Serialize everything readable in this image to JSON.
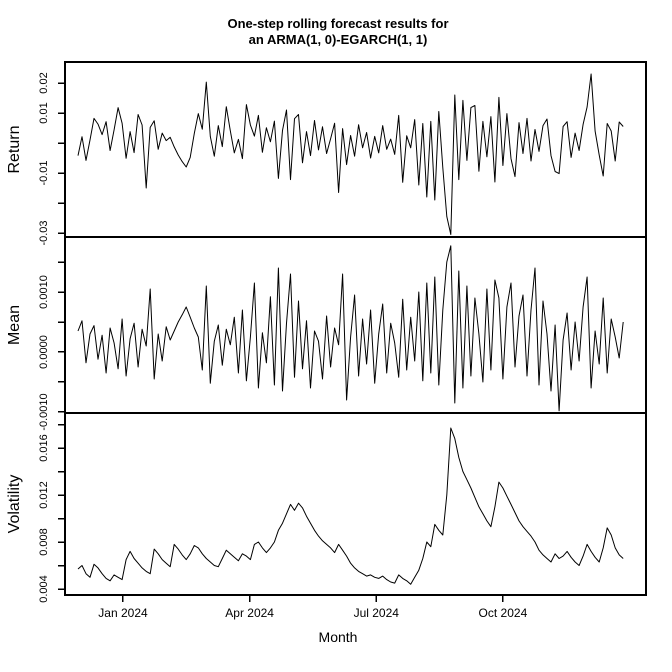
{
  "title": {
    "line1": "One-step rolling forecast results for",
    "line2": "an ARMA(1, 0)-EGARCH(1, 1)"
  },
  "colors": {
    "line": "#000000",
    "background": "#ffffff",
    "text": "#000000"
  },
  "chart_data": {
    "type": "line",
    "title_lines": [
      "One-step rolling forecast results for",
      "an ARMA(1, 0)-EGARCH(1, 1)"
    ],
    "xlabel": "Month",
    "x_axis_range": [
      -1.374,
      12.39
    ],
    "x_data_start": -1.066,
    "x_data_end": 11.85,
    "x_unit": "months relative to Jan 2024",
    "x_ticks": [
      {
        "pos": 0,
        "label": "Jan 2024"
      },
      {
        "pos": 3,
        "label": "Apr 2024"
      },
      {
        "pos": 6,
        "label": "Jul 2024"
      },
      {
        "pos": 9,
        "label": "Oct 2024"
      }
    ],
    "grid": false,
    "legend": "none",
    "panels": [
      {
        "name": "return",
        "ylabel": "Return",
        "ylim": [
          -0.03133,
          0.027
        ],
        "yticks": [
          {
            "v": 0.02,
            "label": "0.02"
          },
          {
            "v": 0.01,
            "label": "0.01"
          },
          {
            "v": 0.0
          },
          {
            "v": -0.01,
            "label": "-0.01"
          },
          {
            "v": -0.02
          },
          {
            "v": -0.03,
            "label": "-0.03"
          }
        ],
        "values": [
          -0.0042,
          0.0021,
          -0.0058,
          0.001,
          0.0082,
          0.0063,
          0.0028,
          0.0071,
          -0.0025,
          0.0044,
          0.0118,
          0.0066,
          -0.0051,
          0.0038,
          -0.0032,
          0.0095,
          0.006,
          -0.015,
          0.0052,
          0.0074,
          -0.0021,
          0.0033,
          0.0008,
          0.0019,
          -0.0013,
          -0.004,
          -0.0062,
          -0.008,
          -0.0048,
          0.0032,
          0.0098,
          0.0046,
          0.0203,
          0.0022,
          -0.0044,
          0.0058,
          -0.0012,
          0.0121,
          0.0041,
          -0.0033,
          0.0012,
          -0.0052,
          0.0128,
          0.006,
          0.0023,
          0.0092,
          -0.0031,
          0.0051,
          0.0004,
          0.0073,
          -0.0118,
          0.0042,
          0.011,
          -0.0122,
          0.0081,
          0.0095,
          -0.0066,
          0.0038,
          -0.0042,
          0.0075,
          -0.0023,
          0.0054,
          -0.0035,
          0.0014,
          0.0066,
          -0.0165,
          0.0048,
          -0.0072,
          0.0025,
          -0.0044,
          0.0061,
          -0.0016,
          0.0035,
          -0.005,
          0.0022,
          -0.0033,
          0.0058,
          -0.0021,
          0.0013,
          -0.0038,
          0.0092,
          -0.0131,
          0.0024,
          -0.0016,
          0.0078,
          -0.014,
          0.0065,
          -0.018,
          0.0072,
          -0.019,
          0.0105,
          -0.0082,
          -0.0245,
          -0.0305,
          0.016,
          -0.0122,
          0.0142,
          -0.0058,
          0.0118,
          0.0125,
          -0.0094,
          0.0072,
          -0.0046,
          0.0088,
          -0.013,
          0.0152,
          -0.0075,
          0.0098,
          -0.0052,
          -0.0112,
          0.0068,
          -0.0035,
          0.0082,
          -0.006,
          0.0045,
          -0.0028,
          0.0058,
          0.008,
          -0.0042,
          -0.0095,
          -0.0102,
          0.0055,
          0.0071,
          -0.0048,
          0.0033,
          -0.0025,
          0.0062,
          0.012,
          0.023,
          0.004,
          -0.004,
          -0.011,
          0.0065,
          0.004,
          -0.006,
          0.007,
          0.0055
        ]
      },
      {
        "name": "mean",
        "ylabel": "Mean",
        "ylim": [
          -0.0010167,
          0.0019167
        ],
        "yticks": [
          {
            "v": 0.0015
          },
          {
            "v": 0.001,
            "label": "0.0010"
          },
          {
            "v": 0.0005
          },
          {
            "v": 0.0,
            "label": "0.0000"
          },
          {
            "v": -0.0005
          },
          {
            "v": -0.001,
            "label": "-0.0010"
          }
        ],
        "values": [
          0.00035,
          0.00052,
          -0.00018,
          0.0003,
          0.00044,
          -0.00012,
          0.00028,
          -0.00035,
          0.0004,
          0.00015,
          -0.00028,
          0.00055,
          -0.0004,
          0.00022,
          0.00048,
          -0.00025,
          0.00038,
          0.0001,
          0.00105,
          -0.00045,
          0.0003,
          -0.00015,
          0.00042,
          0.0002,
          0.00035,
          0.0005,
          0.00062,
          0.00075,
          0.00058,
          0.0004,
          0.00025,
          -0.0003,
          0.0011,
          -0.00052,
          0.00018,
          0.00045,
          -0.00022,
          0.00038,
          0.00012,
          0.00058,
          -0.00035,
          0.0007,
          -0.00048,
          0.00025,
          0.00115,
          -0.0006,
          0.00032,
          -0.00018,
          0.00092,
          -0.00055,
          0.0014,
          -0.00065,
          0.00048,
          0.0013,
          -0.00042,
          0.00085,
          -0.00028,
          0.00052,
          -0.0006,
          0.00035,
          0.00018,
          -0.00045,
          0.0006,
          -0.00025,
          0.0004,
          0.00012,
          0.0013,
          -0.0008,
          0.00025,
          0.00095,
          -0.0004,
          0.00055,
          -0.0002,
          0.0007,
          -0.00052,
          0.0003,
          0.0008,
          -0.00035,
          0.00048,
          0.00015,
          -0.00042,
          0.00088,
          -0.0003,
          0.00058,
          -0.00015,
          0.001,
          -0.00048,
          0.00115,
          -0.00035,
          0.00125,
          -0.00055,
          0.0007,
          0.0015,
          0.00177,
          -0.00085,
          0.00135,
          -0.0006,
          0.0011,
          -0.0004,
          0.0009,
          0.0003,
          -0.0005,
          0.00105,
          -0.0003,
          0.0012,
          0.0009,
          -0.00045,
          0.00075,
          0.00115,
          -0.00025,
          0.0006,
          0.00095,
          -0.0004,
          0.0007,
          0.0014,
          -0.00055,
          0.00085,
          0.0003,
          -0.00065,
          0.00045,
          -0.00098,
          0.0002,
          0.00065,
          -0.0003,
          0.0005,
          -0.00015,
          0.00075,
          0.00125,
          -0.0006,
          0.00035,
          -0.0002,
          0.0009,
          -0.00035,
          0.00055,
          0.00025,
          -0.0001,
          0.0005
        ]
      },
      {
        "name": "volatility",
        "ylabel": "Volatility",
        "ylim": [
          0.00349,
          0.01898
        ],
        "yticks": [
          {
            "v": 0.018
          },
          {
            "v": 0.016,
            "label": "0.016"
          },
          {
            "v": 0.014
          },
          {
            "v": 0.012,
            "label": "0.012"
          },
          {
            "v": 0.01
          },
          {
            "v": 0.008,
            "label": "0.008"
          },
          {
            "v": 0.006
          },
          {
            "v": 0.004,
            "label": "0.004"
          }
        ],
        "values": [
          0.0057,
          0.006,
          0.0053,
          0.005,
          0.0061,
          0.0058,
          0.0053,
          0.0049,
          0.0047,
          0.0052,
          0.005,
          0.0048,
          0.0065,
          0.0072,
          0.0066,
          0.0062,
          0.0058,
          0.0055,
          0.0053,
          0.0074,
          0.007,
          0.0065,
          0.0062,
          0.0059,
          0.0078,
          0.0074,
          0.0069,
          0.0065,
          0.007,
          0.0077,
          0.0075,
          0.007,
          0.0066,
          0.0063,
          0.006,
          0.0059,
          0.0066,
          0.0073,
          0.007,
          0.0067,
          0.0064,
          0.007,
          0.0068,
          0.0065,
          0.0078,
          0.008,
          0.0075,
          0.0071,
          0.0075,
          0.008,
          0.009,
          0.0096,
          0.0104,
          0.0112,
          0.0107,
          0.0113,
          0.0109,
          0.0102,
          0.0096,
          0.009,
          0.0085,
          0.0081,
          0.0078,
          0.0075,
          0.0071,
          0.0078,
          0.0073,
          0.0068,
          0.0062,
          0.0058,
          0.0055,
          0.0053,
          0.0051,
          0.0052,
          0.005,
          0.0049,
          0.0051,
          0.0048,
          0.0046,
          0.0045,
          0.0052,
          0.0049,
          0.0047,
          0.0044,
          0.005,
          0.0056,
          0.0066,
          0.008,
          0.0076,
          0.0095,
          0.009,
          0.0086,
          0.012,
          0.0177,
          0.0168,
          0.0152,
          0.014,
          0.0133,
          0.0126,
          0.0118,
          0.011,
          0.0104,
          0.0098,
          0.0093,
          0.011,
          0.0131,
          0.0126,
          0.0119,
          0.0112,
          0.0105,
          0.0098,
          0.0093,
          0.0089,
          0.0085,
          0.008,
          0.0073,
          0.0069,
          0.0066,
          0.0063,
          0.007,
          0.0066,
          0.0068,
          0.0072,
          0.0067,
          0.0063,
          0.006,
          0.0068,
          0.0078,
          0.0072,
          0.0067,
          0.0063,
          0.0075,
          0.0092,
          0.0086,
          0.0075,
          0.0069,
          0.0066
        ]
      }
    ]
  }
}
